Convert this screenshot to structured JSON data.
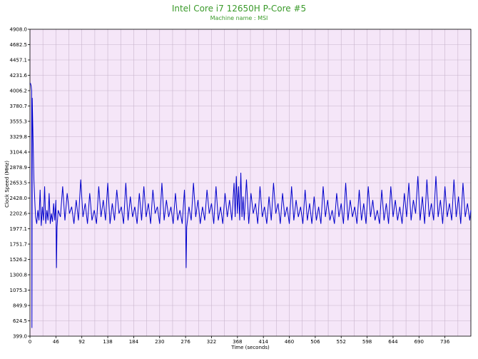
{
  "chart_data": {
    "type": "line",
    "title": "Intel Core i7 12650H P-Core #5",
    "subtitle": "Machine name : MSI",
    "xlabel": "Time (seconds)",
    "ylabel": "Clock Speed (MHz)",
    "xlim": [
      0,
      782
    ],
    "ylim": [
      399.0,
      4908.0
    ],
    "xticks": [
      0,
      46,
      92,
      138,
      184,
      230,
      276,
      322,
      368,
      414,
      460,
      506,
      552,
      598,
      644,
      690,
      736
    ],
    "yticks": [
      399.0,
      624.5,
      849.9,
      1075.3,
      1300.8,
      1526.2,
      1751.7,
      1977.1,
      2202.6,
      2428.0,
      2653.5,
      2878.9,
      3104.4,
      3329.8,
      3555.3,
      3780.7,
      4006.2,
      4231.6,
      4457.1,
      4682.5,
      4908.0
    ],
    "grid": true,
    "colors": {
      "line": "#0000cc",
      "plot_bg": "#f5e6f8",
      "grid": "#c8b4cc",
      "title": "#3a9a2a"
    },
    "series": [
      {
        "points": [
          [
            0,
            4100
          ],
          [
            1,
            4110
          ],
          [
            2,
            4080
          ],
          [
            3,
            4000
          ],
          [
            3.5,
            520
          ],
          [
            4,
            3900
          ],
          [
            5,
            3500
          ],
          [
            6,
            3100
          ],
          [
            7,
            2700
          ],
          [
            8,
            2500
          ],
          [
            9,
            2300
          ],
          [
            10,
            2150
          ],
          [
            12,
            2050
          ],
          [
            14,
            2250
          ],
          [
            16,
            2100
          ],
          [
            18,
            2550
          ],
          [
            20,
            2020
          ],
          [
            22,
            2300
          ],
          [
            24,
            2100
          ],
          [
            26,
            2600
          ],
          [
            28,
            2050
          ],
          [
            30,
            2250
          ],
          [
            32,
            2100
          ],
          [
            34,
            2500
          ],
          [
            36,
            2050
          ],
          [
            38,
            2200
          ],
          [
            40,
            2080
          ],
          [
            42,
            2350
          ],
          [
            44,
            2100
          ],
          [
            46,
            2400
          ],
          [
            47,
            1400
          ],
          [
            48,
            2000
          ],
          [
            50,
            2250
          ],
          [
            54,
            2150
          ],
          [
            58,
            2600
          ],
          [
            62,
            2100
          ],
          [
            66,
            2500
          ],
          [
            70,
            2200
          ],
          [
            74,
            2300
          ],
          [
            78,
            2050
          ],
          [
            82,
            2400
          ],
          [
            86,
            2100
          ],
          [
            90,
            2700
          ],
          [
            94,
            2150
          ],
          [
            98,
            2350
          ],
          [
            102,
            2050
          ],
          [
            106,
            2500
          ],
          [
            110,
            2100
          ],
          [
            114,
            2250
          ],
          [
            118,
            2050
          ],
          [
            122,
            2600
          ],
          [
            126,
            2150
          ],
          [
            130,
            2400
          ],
          [
            134,
            2100
          ],
          [
            138,
            2650
          ],
          [
            142,
            2050
          ],
          [
            146,
            2350
          ],
          [
            150,
            2100
          ],
          [
            154,
            2550
          ],
          [
            158,
            2200
          ],
          [
            162,
            2300
          ],
          [
            166,
            2050
          ],
          [
            170,
            2650
          ],
          [
            174,
            2100
          ],
          [
            178,
            2450
          ],
          [
            182,
            2150
          ],
          [
            186,
            2300
          ],
          [
            190,
            2050
          ],
          [
            194,
            2500
          ],
          [
            198,
            2100
          ],
          [
            202,
            2600
          ],
          [
            206,
            2150
          ],
          [
            210,
            2350
          ],
          [
            214,
            2050
          ],
          [
            218,
            2550
          ],
          [
            222,
            2200
          ],
          [
            226,
            2300
          ],
          [
            230,
            2050
          ],
          [
            234,
            2650
          ],
          [
            238,
            2100
          ],
          [
            242,
            2400
          ],
          [
            246,
            2150
          ],
          [
            250,
            2300
          ],
          [
            254,
            2050
          ],
          [
            258,
            2500
          ],
          [
            262,
            2100
          ],
          [
            266,
            2250
          ],
          [
            270,
            2050
          ],
          [
            274,
            2550
          ],
          [
            276,
            2100
          ],
          [
            277,
            1400
          ],
          [
            278,
            2000
          ],
          [
            282,
            2300
          ],
          [
            286,
            2100
          ],
          [
            290,
            2650
          ],
          [
            294,
            2150
          ],
          [
            298,
            2400
          ],
          [
            302,
            2050
          ],
          [
            306,
            2300
          ],
          [
            310,
            2100
          ],
          [
            314,
            2550
          ],
          [
            318,
            2200
          ],
          [
            322,
            2350
          ],
          [
            326,
            2050
          ],
          [
            330,
            2600
          ],
          [
            334,
            2100
          ],
          [
            338,
            2300
          ],
          [
            342,
            2050
          ],
          [
            346,
            2500
          ],
          [
            350,
            2150
          ],
          [
            354,
            2400
          ],
          [
            358,
            2100
          ],
          [
            362,
            2650
          ],
          [
            364,
            2150
          ],
          [
            366,
            2750
          ],
          [
            368,
            2200
          ],
          [
            370,
            2600
          ],
          [
            372,
            2100
          ],
          [
            374,
            2800
          ],
          [
            376,
            2150
          ],
          [
            378,
            2450
          ],
          [
            380,
            2100
          ],
          [
            384,
            2700
          ],
          [
            388,
            2050
          ],
          [
            392,
            2500
          ],
          [
            396,
            2200
          ],
          [
            400,
            2350
          ],
          [
            404,
            2050
          ],
          [
            408,
            2600
          ],
          [
            412,
            2150
          ],
          [
            416,
            2300
          ],
          [
            420,
            2050
          ],
          [
            424,
            2450
          ],
          [
            428,
            2100
          ],
          [
            432,
            2650
          ],
          [
            436,
            2200
          ],
          [
            440,
            2350
          ],
          [
            444,
            2050
          ],
          [
            448,
            2500
          ],
          [
            452,
            2150
          ],
          [
            456,
            2300
          ],
          [
            460,
            2050
          ],
          [
            464,
            2600
          ],
          [
            468,
            2100
          ],
          [
            472,
            2400
          ],
          [
            476,
            2150
          ],
          [
            480,
            2300
          ],
          [
            484,
            2050
          ],
          [
            488,
            2550
          ],
          [
            492,
            2100
          ],
          [
            496,
            2350
          ],
          [
            500,
            2050
          ],
          [
            504,
            2450
          ],
          [
            508,
            2100
          ],
          [
            512,
            2300
          ],
          [
            516,
            2050
          ],
          [
            520,
            2600
          ],
          [
            524,
            2150
          ],
          [
            528,
            2400
          ],
          [
            532,
            2100
          ],
          [
            536,
            2250
          ],
          [
            540,
            2050
          ],
          [
            544,
            2500
          ],
          [
            548,
            2150
          ],
          [
            552,
            2350
          ],
          [
            556,
            2050
          ],
          [
            560,
            2650
          ],
          [
            564,
            2100
          ],
          [
            568,
            2400
          ],
          [
            572,
            2150
          ],
          [
            576,
            2300
          ],
          [
            580,
            2050
          ],
          [
            584,
            2550
          ],
          [
            588,
            2100
          ],
          [
            592,
            2350
          ],
          [
            596,
            2050
          ],
          [
            600,
            2600
          ],
          [
            604,
            2150
          ],
          [
            608,
            2400
          ],
          [
            612,
            2100
          ],
          [
            616,
            2250
          ],
          [
            620,
            2050
          ],
          [
            624,
            2550
          ],
          [
            628,
            2100
          ],
          [
            632,
            2350
          ],
          [
            636,
            2050
          ],
          [
            640,
            2600
          ],
          [
            644,
            2150
          ],
          [
            648,
            2400
          ],
          [
            652,
            2100
          ],
          [
            656,
            2300
          ],
          [
            660,
            2050
          ],
          [
            664,
            2500
          ],
          [
            668,
            2150
          ],
          [
            672,
            2650
          ],
          [
            676,
            2100
          ],
          [
            680,
            2400
          ],
          [
            684,
            2200
          ],
          [
            688,
            2750
          ],
          [
            692,
            2100
          ],
          [
            696,
            2450
          ],
          [
            700,
            2050
          ],
          [
            704,
            2700
          ],
          [
            708,
            2150
          ],
          [
            712,
            2350
          ],
          [
            716,
            2100
          ],
          [
            720,
            2750
          ],
          [
            724,
            2150
          ],
          [
            728,
            2400
          ],
          [
            732,
            2050
          ],
          [
            736,
            2600
          ],
          [
            740,
            2150
          ],
          [
            744,
            2350
          ],
          [
            748,
            2100
          ],
          [
            752,
            2700
          ],
          [
            756,
            2150
          ],
          [
            760,
            2450
          ],
          [
            764,
            2050
          ],
          [
            768,
            2650
          ],
          [
            772,
            2150
          ],
          [
            776,
            2350
          ],
          [
            780,
            2100
          ],
          [
            782,
            2250
          ]
        ]
      }
    ]
  }
}
